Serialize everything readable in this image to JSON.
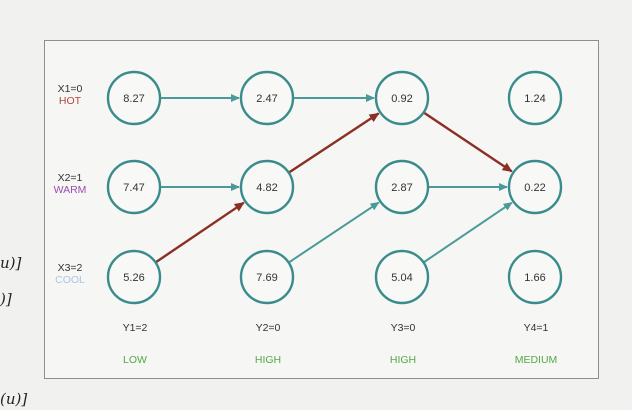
{
  "margin_fragments": [
    "u)]",
    ")]",
    "(u)]"
  ],
  "states": [
    {
      "label": "X1=0",
      "name": "HOT",
      "color": "#b0473c"
    },
    {
      "label": "X2=1",
      "name": "WARM",
      "color": "#9b4fb0"
    },
    {
      "label": "X3=2",
      "name": "COOL",
      "color": "#a9c8e0"
    }
  ],
  "columns": [
    {
      "obs_label": "Y1=2",
      "obs_name": "LOW"
    },
    {
      "obs_label": "Y2=0",
      "obs_name": "HIGH"
    },
    {
      "obs_label": "Y3=0",
      "obs_name": "HIGH"
    },
    {
      "obs_label": "Y4=1",
      "obs_name": "MEDIUM"
    }
  ],
  "node_values": [
    [
      "8.27",
      "7.47",
      "5.26"
    ],
    [
      "2.47",
      "4.82",
      "7.69"
    ],
    [
      "0.92",
      "2.87",
      "5.04"
    ],
    [
      "1.24",
      "0.22",
      "1.66"
    ]
  ],
  "edges": [
    {
      "from": [
        0,
        0
      ],
      "to": [
        1,
        0
      ],
      "best_path": false
    },
    {
      "from": [
        0,
        1
      ],
      "to": [
        1,
        1
      ],
      "best_path": false
    },
    {
      "from": [
        0,
        2
      ],
      "to": [
        1,
        1
      ],
      "best_path": true
    },
    {
      "from": [
        1,
        0
      ],
      "to": [
        2,
        0
      ],
      "best_path": false
    },
    {
      "from": [
        1,
        1
      ],
      "to": [
        2,
        0
      ],
      "best_path": true
    },
    {
      "from": [
        1,
        2
      ],
      "to": [
        2,
        1
      ],
      "best_path": false
    },
    {
      "from": [
        2,
        0
      ],
      "to": [
        3,
        1
      ],
      "best_path": true
    },
    {
      "from": [
        2,
        1
      ],
      "to": [
        3,
        1
      ],
      "best_path": false
    },
    {
      "from": [
        2,
        2
      ],
      "to": [
        3,
        1
      ],
      "best_path": false
    }
  ],
  "colors": {
    "node_stroke": "#3a8c8c",
    "edge": "#4a9a9a",
    "best_path": "#8b2f25",
    "observation_name": "#52a947"
  }
}
